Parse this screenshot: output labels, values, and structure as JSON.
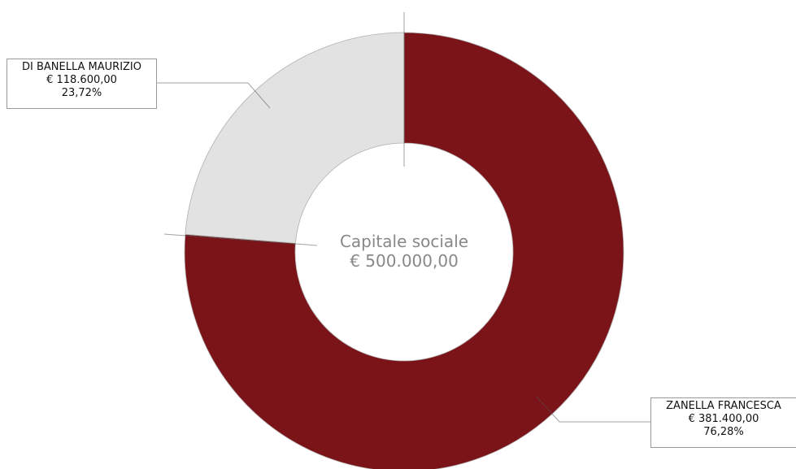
{
  "chart_data": {
    "type": "pie",
    "variant": "donut",
    "center_label": "Capitale sociale",
    "center_value": "€ 500.000,00",
    "total": 500000,
    "slices": [
      {
        "name": "ZANELLA FRANCESCA",
        "value": 381400,
        "value_label": "€ 381.400,00",
        "percent": 76.28,
        "percent_label": "76,28%",
        "color": "#7a1418"
      },
      {
        "name": "DI BANELLA MAURIZIO",
        "value": 118600,
        "value_label": "€ 118.600,00",
        "percent": 23.72,
        "percent_label": "23,72%",
        "color": "#e2e2e2"
      }
    ]
  }
}
